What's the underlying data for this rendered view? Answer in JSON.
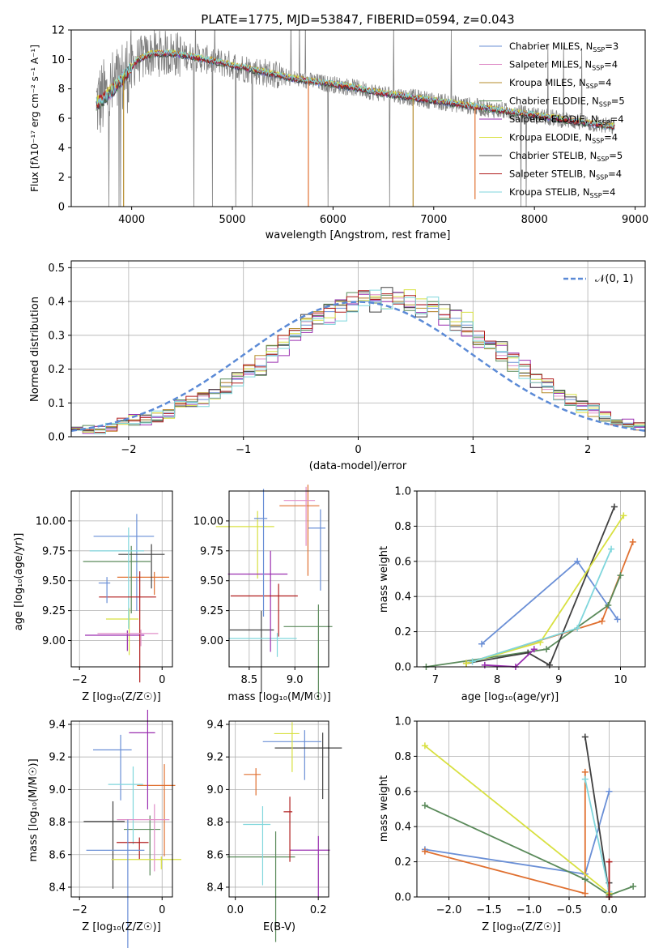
{
  "chart_data": [
    {
      "type": "line",
      "panel": "spectrum",
      "title": "PLATE=1775, MJD=53847, FIBERID=0594, z=0.043",
      "xlabel": "wavelength [Angstrom, rest frame]",
      "ylabel": "Flux [fλ10⁻¹⁷ erg cm⁻² s⁻¹ A⁻¹]",
      "xlim": [
        3400,
        9100
      ],
      "ylim": [
        0,
        12
      ],
      "xticks": [
        4000,
        5000,
        6000,
        7000,
        8000,
        9000
      ],
      "yticks": [
        0,
        2,
        4,
        6,
        8,
        10,
        12
      ],
      "legend_position": "upper-right",
      "data_series": {
        "name": "data",
        "color": "#808080",
        "x_range": [
          3650,
          8800
        ]
      },
      "continuum": {
        "x": [
          3650,
          3750,
          3900,
          4050,
          4200,
          4400,
          4600,
          4800,
          5000,
          5200,
          5400,
          5600,
          5800,
          6000,
          6200,
          6400,
          6600,
          6800,
          7000,
          7200,
          7400,
          7600,
          7800,
          8000,
          8200,
          8400,
          8600,
          8800
        ],
        "y": [
          7.0,
          7.5,
          8.6,
          9.9,
          10.4,
          10.4,
          10.2,
          9.9,
          9.6,
          9.3,
          9.0,
          8.7,
          8.5,
          8.3,
          8.1,
          7.8,
          7.6,
          7.4,
          7.2,
          7.0,
          6.8,
          6.6,
          6.4,
          6.2,
          6.0,
          5.8,
          5.6,
          5.4
        ]
      },
      "spikes": [
        {
          "x": 3920,
          "y": 0
        },
        {
          "x": 5755,
          "y": 0
        },
        {
          "x": 6795,
          "y": 0
        },
        {
          "x": 7410,
          "y": 0.5
        }
      ],
      "series": [
        {
          "name": "Chabrier MILES, N_SSP=3",
          "label_main": "Chabrier MILES, N",
          "label_sub": "SSP",
          "label_end": "=3",
          "color": "#6a8fd6"
        },
        {
          "name": "Salpeter MILES, N_SSP=4",
          "label_main": "Salpeter MILES, N",
          "label_sub": "SSP",
          "label_end": "=4",
          "color": "#e08fc8"
        },
        {
          "name": "Kroupa MILES, N_SSP=4",
          "label_main": "Kroupa MILES, N",
          "label_sub": "SSP",
          "label_end": "=4",
          "color": "#b58b2a"
        },
        {
          "name": "Chabrier ELODIE, N_SSP=5",
          "label_main": "Chabrier ELODIE, N",
          "label_sub": "SSP",
          "label_end": "=5",
          "color": "#5a8a5a"
        },
        {
          "name": "Salpeter ELODIE, N_SSP=4",
          "label_main": "Salpeter ELODIE, N",
          "label_sub": "SSP",
          "label_end": "=4",
          "color": "#9a2fb0"
        },
        {
          "name": "Kroupa ELODIE, N_SSP=4",
          "label_main": "Kroupa ELODIE, N",
          "label_sub": "SSP",
          "label_end": "=4",
          "color": "#d8e040"
        },
        {
          "name": "Chabrier STELIB, N_SSP=5",
          "label_main": "Chabrier STELIB, N",
          "label_sub": "SSP",
          "label_end": "=5",
          "color": "#404040"
        },
        {
          "name": "Salpeter STELIB, N_SSP=4",
          "label_main": "Salpeter STELIB, N",
          "label_sub": "SSP",
          "label_end": "=4",
          "color": "#b01c1c"
        },
        {
          "name": "Kroupa STELIB, N_SSP=4",
          "label_main": "Kroupa STELIB, N",
          "label_sub": "SSP",
          "label_end": "=4",
          "color": "#7fd6dc"
        }
      ]
    },
    {
      "type": "line",
      "panel": "residual-histogram",
      "xlabel": "(data-model)/error",
      "ylabel": "Normed distribution",
      "xlim": [
        -2.5,
        2.5
      ],
      "ylim": [
        0,
        0.52
      ],
      "xticks": [
        -2,
        -1,
        0,
        1,
        2
      ],
      "yticks": [
        0.0,
        0.1,
        0.2,
        0.3,
        0.4,
        0.5
      ],
      "bin_start": -2.5,
      "bin_width": 0.1,
      "gaussian": {
        "name": "𝒩(0, 1)",
        "mean": 0,
        "sigma": 1,
        "color": "#5b8ad6",
        "style": "dashed"
      },
      "histograms": [
        {
          "color": "#6a8fd6",
          "values": [
            0.02,
            0.02,
            0.02,
            0.03,
            0.04,
            0.05,
            0.05,
            0.06,
            0.07,
            0.09,
            0.1,
            0.11,
            0.13,
            0.15,
            0.17,
            0.19,
            0.21,
            0.24,
            0.27,
            0.3,
            0.33,
            0.35,
            0.37,
            0.38,
            0.39,
            0.4,
            0.4,
            0.41,
            0.4,
            0.4,
            0.39,
            0.38,
            0.36,
            0.35,
            0.33,
            0.3,
            0.28,
            0.25,
            0.22,
            0.2,
            0.17,
            0.15,
            0.13,
            0.11,
            0.09,
            0.08,
            0.06,
            0.05,
            0.04,
            0.03
          ]
        },
        {
          "color": "#e08fc8",
          "values": [
            0.02,
            0.02,
            0.03,
            0.03,
            0.04,
            0.05,
            0.06,
            0.07,
            0.08,
            0.09,
            0.11,
            0.12,
            0.14,
            0.16,
            0.18,
            0.21,
            0.23,
            0.26,
            0.29,
            0.32,
            0.34,
            0.36,
            0.38,
            0.39,
            0.4,
            0.41,
            0.42,
            0.41,
            0.41,
            0.4,
            0.39,
            0.37,
            0.36,
            0.34,
            0.31,
            0.29,
            0.26,
            0.24,
            0.21,
            0.18,
            0.16,
            0.14,
            0.12,
            0.1,
            0.08,
            0.07,
            0.05,
            0.04,
            0.03,
            0.02
          ]
        },
        {
          "color": "#b58b2a",
          "values": [
            0.02,
            0.02,
            0.03,
            0.03,
            0.04,
            0.05,
            0.05,
            0.07,
            0.08,
            0.1,
            0.11,
            0.13,
            0.14,
            0.16,
            0.19,
            0.21,
            0.24,
            0.27,
            0.3,
            0.32,
            0.35,
            0.37,
            0.38,
            0.4,
            0.4,
            0.41,
            0.41,
            0.41,
            0.4,
            0.39,
            0.38,
            0.37,
            0.35,
            0.33,
            0.31,
            0.28,
            0.26,
            0.23,
            0.2,
            0.18,
            0.16,
            0.13,
            0.11,
            0.1,
            0.08,
            0.06,
            0.05,
            0.04,
            0.03,
            0.02
          ]
        }
      ]
    },
    {
      "type": "scatter",
      "panel": "age-vs-Z",
      "xlabel": "Z [log₁₀(Z/Z☉)]",
      "ylabel": "age  [log₁₀(age/yr)]",
      "xlim": [
        -2.2,
        0.25
      ],
      "ylim": [
        8.78,
        10.25
      ],
      "xticks": [
        -2,
        0
      ],
      "yticks": [
        9.0,
        9.25,
        9.5,
        9.75,
        10.0
      ]
    },
    {
      "type": "scatter",
      "panel": "age-vs-mass",
      "xlabel": "mass [log₁₀(M/M☉)]",
      "xlim": [
        8.28,
        9.37
      ],
      "ylim": [
        8.78,
        10.25
      ],
      "xticks": [
        8.5,
        9.0
      ],
      "yticks": [
        9.0,
        9.25,
        9.5,
        9.75,
        10.0
      ]
    },
    {
      "type": "line",
      "panel": "weight-vs-age",
      "xlabel": "age  [log₁₀(age/yr)]",
      "ylabel": "mass weight",
      "xlim": [
        6.7,
        10.4
      ],
      "ylim": [
        0,
        1.0
      ],
      "xticks": [
        7,
        8,
        9,
        10
      ],
      "yticks": [
        0.0,
        0.2,
        0.4,
        0.6,
        0.8,
        1.0
      ],
      "series": [
        {
          "color": "#6a8fd6",
          "x": [
            7.75,
            9.3,
            9.95
          ],
          "y": [
            0.13,
            0.6,
            0.27
          ]
        },
        {
          "color": "#e07030",
          "x": [
            7.5,
            9.7,
            10.2
          ],
          "y": [
            0.02,
            0.26,
            0.71
          ]
        },
        {
          "color": "#5a8a5a",
          "x": [
            6.85,
            8.8,
            9.8,
            10.0
          ],
          "y": [
            0.0,
            0.1,
            0.35,
            0.52
          ]
        },
        {
          "color": "#404040",
          "x": [
            7.5,
            8.5,
            8.85,
            9.9
          ],
          "y": [
            0.02,
            0.08,
            0.01,
            0.91
          ]
        },
        {
          "color": "#d8e040",
          "x": [
            7.5,
            8.7,
            10.05
          ],
          "y": [
            0.02,
            0.14,
            0.86
          ]
        },
        {
          "color": "#7fd6dc",
          "x": [
            7.6,
            9.3,
            9.85
          ],
          "y": [
            0.03,
            0.22,
            0.67
          ]
        },
        {
          "color": "#9a2fb0",
          "x": [
            7.8,
            8.3,
            8.6
          ],
          "y": [
            0.01,
            0.0,
            0.1
          ]
        }
      ]
    },
    {
      "type": "scatter",
      "panel": "mass-vs-Z",
      "xlabel": "Z [log₁₀(Z/Z☉)]",
      "ylabel": "mass [log₁₀(M/M☉)]",
      "xlim": [
        -2.2,
        0.25
      ],
      "ylim": [
        8.34,
        9.42
      ],
      "xticks": [
        -2,
        0
      ],
      "yticks": [
        8.4,
        8.6,
        8.8,
        9.0,
        9.2,
        9.4
      ]
    },
    {
      "type": "scatter",
      "panel": "mass-vs-EBV",
      "xlabel": "E(B-V)",
      "xlim": [
        -0.015,
        0.225
      ],
      "ylim": [
        8.34,
        9.42
      ],
      "xticks": [
        0.0,
        0.2
      ],
      "yticks": [
        8.4,
        8.6,
        8.8,
        9.0,
        9.2,
        9.4
      ]
    },
    {
      "type": "line",
      "panel": "weight-vs-Z",
      "xlabel": "Z [log₁₀(Z/Z☉)]",
      "ylabel": "mass weight",
      "xlim": [
        -2.4,
        0.45
      ],
      "ylim": [
        0,
        1.0
      ],
      "xticks": [
        -2.0,
        -1.5,
        -1.0,
        -0.5,
        0.0
      ],
      "yticks": [
        0.0,
        0.2,
        0.4,
        0.6,
        0.8,
        1.0
      ],
      "series": [
        {
          "color": "#6a8fd6",
          "x": [
            -2.3,
            -0.3,
            0.0
          ],
          "y": [
            0.27,
            0.13,
            0.6
          ]
        },
        {
          "color": "#e07030",
          "x": [
            -2.3,
            -0.3,
            -0.3
          ],
          "y": [
            0.26,
            0.02,
            0.71
          ]
        },
        {
          "color": "#5a8a5a",
          "x": [
            -2.3,
            -0.3,
            0.0,
            0.3
          ],
          "y": [
            0.52,
            0.1,
            0.01,
            0.06
          ]
        },
        {
          "color": "#404040",
          "x": [
            -0.3,
            0.0,
            0.0
          ],
          "y": [
            0.91,
            0.02,
            0.08
          ]
        },
        {
          "color": "#d8e040",
          "x": [
            -2.3,
            0.0
          ],
          "y": [
            0.86,
            0.02
          ]
        },
        {
          "color": "#7fd6dc",
          "x": [
            -0.3,
            0.0
          ],
          "y": [
            0.67,
            0.03
          ]
        },
        {
          "color": "#b01c1c",
          "x": [
            0.0,
            0.0
          ],
          "y": [
            0.0,
            0.2
          ]
        }
      ]
    }
  ]
}
